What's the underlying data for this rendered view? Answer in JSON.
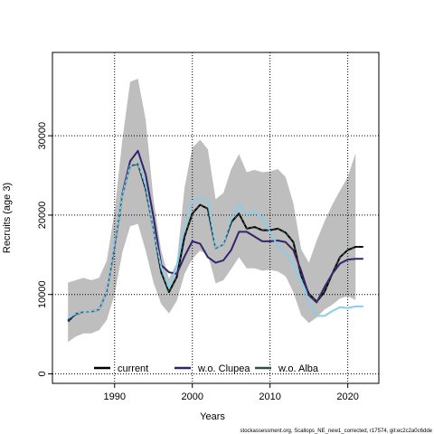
{
  "chart_data": {
    "type": "line",
    "xlabel": "Years",
    "ylabel": "Recruits (age 3)",
    "xlim": [
      1982,
      2024
    ],
    "ylim": [
      -1200,
      40500
    ],
    "x_ticks": [
      1990,
      2000,
      2010,
      2020
    ],
    "y_ticks": [
      0,
      10000,
      20000,
      30000
    ],
    "grid": "dotted, at ticks",
    "legend_position": "bottom-center",
    "footer_text": "stockassessment.org, Scallops_NE_new1_corrected, r17574, git:ec2c2a0c6dde",
    "x": [
      1984,
      1985,
      1986,
      1987,
      1988,
      1989,
      1990,
      1991,
      1992,
      1993,
      1994,
      1995,
      1996,
      1997,
      1998,
      1999,
      2000,
      2001,
      2002,
      2003,
      2004,
      2005,
      2006,
      2007,
      2008,
      2009,
      2010,
      2011,
      2012,
      2013,
      2014,
      2015,
      2016,
      2017,
      2018,
      2019,
      2020,
      2021,
      2022
    ],
    "band": {
      "color": "#bebebe",
      "upper": [
        11500,
        11800,
        12100,
        11800,
        12100,
        14300,
        20500,
        29500,
        36800,
        37200,
        32000,
        22000,
        15500,
        12000,
        14000,
        23500,
        28500,
        29500,
        28300,
        22000,
        22800,
        25800,
        27700,
        25400,
        25700,
        25400,
        25500,
        25800,
        24800,
        21500,
        15700,
        14000,
        16800,
        19200,
        21300,
        23100,
        24800,
        27800,
        null
      ],
      "lower": [
        4000,
        4700,
        5100,
        5100,
        5500,
        6800,
        10000,
        15300,
        18600,
        18900,
        15500,
        11500,
        8800,
        7600,
        9200,
        12600,
        14500,
        15500,
        15000,
        11400,
        11800,
        13200,
        14700,
        13300,
        13300,
        13000,
        13100,
        12900,
        12300,
        10300,
        7400,
        6400,
        7100,
        8100,
        8700,
        9500,
        9800,
        9300,
        null
      ]
    },
    "series": [
      {
        "name": "current",
        "color": "#000000",
        "width": 2,
        "dash": "",
        "values": [
          6600,
          7600,
          7800,
          7800,
          8100,
          10300,
          16200,
          22500,
          26200,
          26500,
          23300,
          18100,
          12800,
          10300,
          12200,
          17300,
          20200,
          21300,
          20800,
          15800,
          16300,
          19100,
          20200,
          18300,
          18500,
          18100,
          18100,
          18300,
          17800,
          16600,
          12400,
          10100,
          9100,
          10300,
          12600,
          14700,
          15600,
          16000,
          16000
        ]
      },
      {
        "name": "w.o. Clupea",
        "color": "#35236a",
        "width": 2,
        "dash": "",
        "values": [
          6800,
          7500,
          7800,
          7800,
          8100,
          10300,
          16200,
          22700,
          26800,
          28100,
          25100,
          19800,
          13700,
          12800,
          12600,
          14800,
          16700,
          16400,
          14700,
          14000,
          14300,
          15600,
          17900,
          17900,
          17300,
          16700,
          16700,
          16800,
          16600,
          15600,
          13000,
          9900,
          9000,
          10900,
          12600,
          13900,
          14400,
          14500,
          14500
        ]
      },
      {
        "name": "w.o. Alba",
        "color": "#87ceeb",
        "width": 2,
        "dash": "",
        "values": [
          7000,
          7600,
          7800,
          7800,
          8100,
          10300,
          16400,
          22500,
          26200,
          26600,
          23700,
          18000,
          13400,
          10800,
          13700,
          18500,
          21700,
          22300,
          21700,
          15800,
          16300,
          19500,
          21300,
          20100,
          20400,
          19700,
          17900,
          16100,
          15300,
          13700,
          11700,
          9100,
          7300,
          7300,
          7900,
          8400,
          8300,
          8500,
          8500
        ]
      },
      {
        "name": "w.o. Alba",
        "color": "#2f4f4f",
        "width": 1,
        "dash": "3,3",
        "values": [
          6600,
          7600,
          7800,
          7800,
          8100,
          10300,
          16200,
          22500,
          26200,
          26500,
          23300,
          18100,
          12800,
          10300,
          12200,
          17300,
          20200,
          21300,
          20800,
          15800,
          16300,
          19100,
          20200,
          18300,
          18500,
          18100,
          18100,
          18300,
          17800,
          16600,
          12400,
          10100,
          9100,
          10300,
          12600,
          14700,
          15600,
          16000,
          16000
        ]
      }
    ],
    "legend": [
      {
        "label": "current",
        "color": "#000000"
      },
      {
        "label": "w.o. Clupea",
        "color": "#35236a"
      },
      {
        "label": "w.o. Alba",
        "color": "#2f4f4f"
      }
    ]
  }
}
